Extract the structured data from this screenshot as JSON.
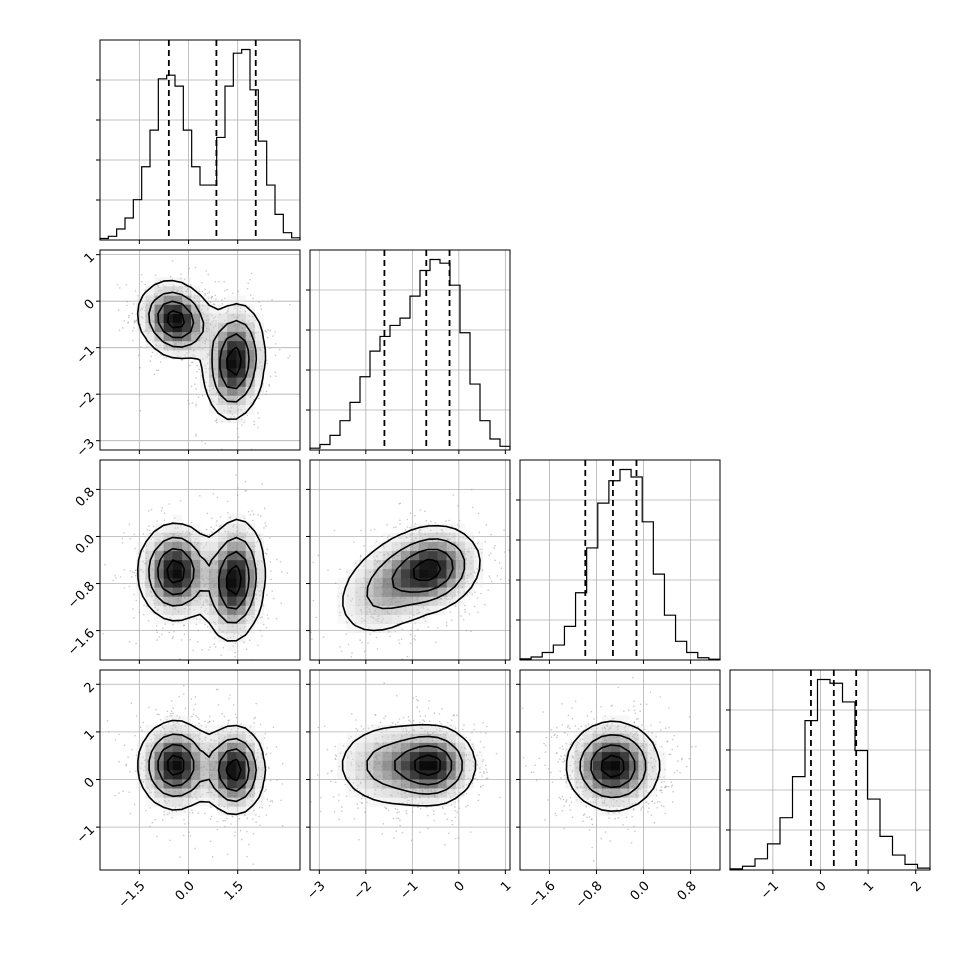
{
  "colors": {
    "background": "#ffffff",
    "axes": "#000000",
    "grid": "#b0b0b0",
    "histogram": "#000000",
    "contour": "#000000",
    "scatter": "#9a9a9a",
    "density_dark": "#000000",
    "density_light": "#ffffff"
  },
  "chart_data": {
    "type": "corner",
    "parameters": [
      "",
      "",
      "",
      ""
    ],
    "grid": true,
    "quantile_lines": "dashed",
    "ranges": [
      [
        -2.7,
        3.4
      ],
      [
        -3.2,
        1.1
      ],
      [
        -2.1,
        1.3
      ],
      [
        -1.9,
        2.3
      ]
    ],
    "tick_values": [
      [
        -1.5,
        0.0,
        1.5
      ],
      [
        -3,
        -2,
        -1,
        0,
        1
      ],
      [
        -1.6,
        -0.8,
        0.0,
        0.8
      ],
      [
        -1,
        0,
        1,
        2
      ]
    ],
    "tick_labels": [
      [
        "−1.5",
        "0.0",
        "1.5"
      ],
      [
        "−3",
        "−2",
        "−1",
        "0",
        "1"
      ],
      [
        "−1.6",
        "−0.8",
        "0.0",
        "0.8"
      ],
      [
        "−1",
        "0",
        "1",
        "2"
      ]
    ],
    "histograms": [
      {
        "param": 0,
        "bin_range": [
          -2.7,
          3.4
        ],
        "counts": [
          0.4,
          1,
          3,
          6,
          11,
          20,
          30,
          44,
          45,
          42,
          30,
          20,
          15,
          15,
          28,
          42,
          51,
          52,
          41,
          27,
          15,
          7,
          2,
          0.6
        ],
        "quantiles": [
          -0.6,
          0.85,
          2.05
        ]
      },
      {
        "param": 1,
        "bin_range": [
          -3.2,
          1.1
        ],
        "counts": [
          0.5,
          1.5,
          4,
          8,
          13,
          20,
          27,
          31,
          34,
          36,
          42,
          49,
          52,
          51,
          45,
          32,
          18,
          8,
          3,
          1
        ],
        "quantiles": [
          -1.6,
          -0.7,
          -0.2
        ]
      },
      {
        "param": 2,
        "bin_range": [
          -2.1,
          1.3
        ],
        "counts": [
          0.3,
          0.8,
          2,
          4,
          9,
          18,
          30,
          42,
          48,
          51,
          49,
          37,
          23,
          12,
          5,
          2,
          0.6,
          0.2
        ],
        "quantiles": [
          -0.99,
          -0.52,
          -0.12
        ]
      },
      {
        "param": 3,
        "bin_range": [
          -1.9,
          2.3
        ],
        "counts": [
          0.3,
          1,
          3,
          7,
          14,
          25,
          40,
          51,
          50,
          45,
          32,
          19,
          9,
          4,
          1.5,
          0.5
        ],
        "quantiles": [
          -0.2,
          0.28,
          0.75
        ]
      }
    ],
    "joint_modes": [
      {
        "row": 1,
        "col": 0,
        "modes": [
          {
            "mean": [
              -0.4,
              -0.4
            ],
            "sd": [
              0.55,
              0.4
            ],
            "rho": -0.15,
            "weight": 1.0
          },
          {
            "mean": [
              1.4,
              -1.3
            ],
            "sd": [
              0.45,
              0.6
            ],
            "rho": 0.1,
            "weight": 1.0
          }
        ]
      },
      {
        "row": 2,
        "col": 0,
        "modes": [
          {
            "mean": [
              -0.4,
              -0.6
            ],
            "sd": [
              0.55,
              0.4
            ],
            "rho": 0.0,
            "weight": 1.0
          },
          {
            "mean": [
              1.4,
              -0.75
            ],
            "sd": [
              0.45,
              0.5
            ],
            "rho": 0.1,
            "weight": 1.0
          }
        ]
      },
      {
        "row": 2,
        "col": 1,
        "modes": [
          {
            "mean": [
              -0.55,
              -0.55
            ],
            "sd": [
              0.5,
              0.35
            ],
            "rho": 0.15,
            "weight": 1.0
          },
          {
            "mean": [
              -1.5,
              -0.85
            ],
            "sd": [
              0.6,
              0.45
            ],
            "rho": 0.35,
            "weight": 0.55
          }
        ]
      },
      {
        "row": 3,
        "col": 0,
        "modes": [
          {
            "mean": [
              -0.4,
              0.3
            ],
            "sd": [
              0.55,
              0.45
            ],
            "rho": 0.0,
            "weight": 1.0
          },
          {
            "mean": [
              1.4,
              0.2
            ],
            "sd": [
              0.45,
              0.45
            ],
            "rho": 0.0,
            "weight": 1.0
          }
        ]
      },
      {
        "row": 3,
        "col": 1,
        "modes": [
          {
            "mean": [
              -0.55,
              0.3
            ],
            "sd": [
              0.45,
              0.4
            ],
            "rho": 0.0,
            "weight": 1.0
          },
          {
            "mean": [
              -1.5,
              0.3
            ],
            "sd": [
              0.6,
              0.45
            ],
            "rho": 0.0,
            "weight": 0.55
          }
        ]
      },
      {
        "row": 3,
        "col": 2,
        "modes": [
          {
            "mean": [
              -0.52,
              0.28
            ],
            "sd": [
              0.38,
              0.45
            ],
            "rho": 0.0,
            "weight": 1.0
          }
        ]
      }
    ]
  }
}
